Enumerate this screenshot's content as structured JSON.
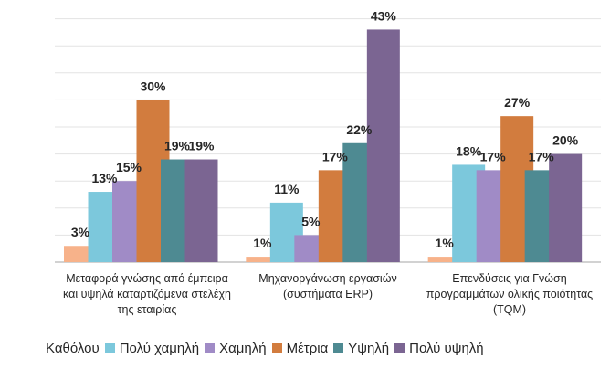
{
  "chart_data": {
    "type": "bar",
    "title": "",
    "xlabel": "",
    "ylabel": "",
    "ylim": [
      0,
      45
    ],
    "grid": true,
    "legend_position": "bottom",
    "categories": [
      "Μεταφορά γνώσης από έμπειρα και υψηλά καταρτιζόμενα στελέχη της εταιρίας",
      "Μηχανοργάνωση εργασιών (συστήματα ERP)",
      "Επενδύσεις για Γνώση προγραμμάτων ολικής ποιότητας (TQM)"
    ],
    "series": [
      {
        "name": "Καθόλου",
        "color": "#F7B28A",
        "values": [
          3,
          1,
          1
        ],
        "labels": [
          "3%",
          "1%",
          "1%"
        ]
      },
      {
        "name": "Πολύ χαμηλή",
        "color": "#7CC8DC",
        "values": [
          13,
          11,
          18
        ],
        "labels": [
          "13%",
          "11%",
          "18%"
        ]
      },
      {
        "name": "Χαμηλή",
        "color": "#A08BC6",
        "values": [
          15,
          5,
          17
        ],
        "labels": [
          "15%",
          "5%",
          "17%"
        ]
      },
      {
        "name": "Μέτρια",
        "color": "#D27C3E",
        "values": [
          30,
          17,
          27
        ],
        "labels": [
          "30%",
          "17%",
          "27%"
        ]
      },
      {
        "name": "Υψηλή",
        "color": "#4E8A92",
        "values": [
          19,
          22,
          17
        ],
        "labels": [
          "19%",
          "22%",
          "17%"
        ]
      },
      {
        "name": "Πολύ υψηλή",
        "color": "#7B6592",
        "values": [
          19,
          43,
          20
        ],
        "labels": [
          "19%",
          "43%",
          "20%"
        ]
      }
    ]
  }
}
